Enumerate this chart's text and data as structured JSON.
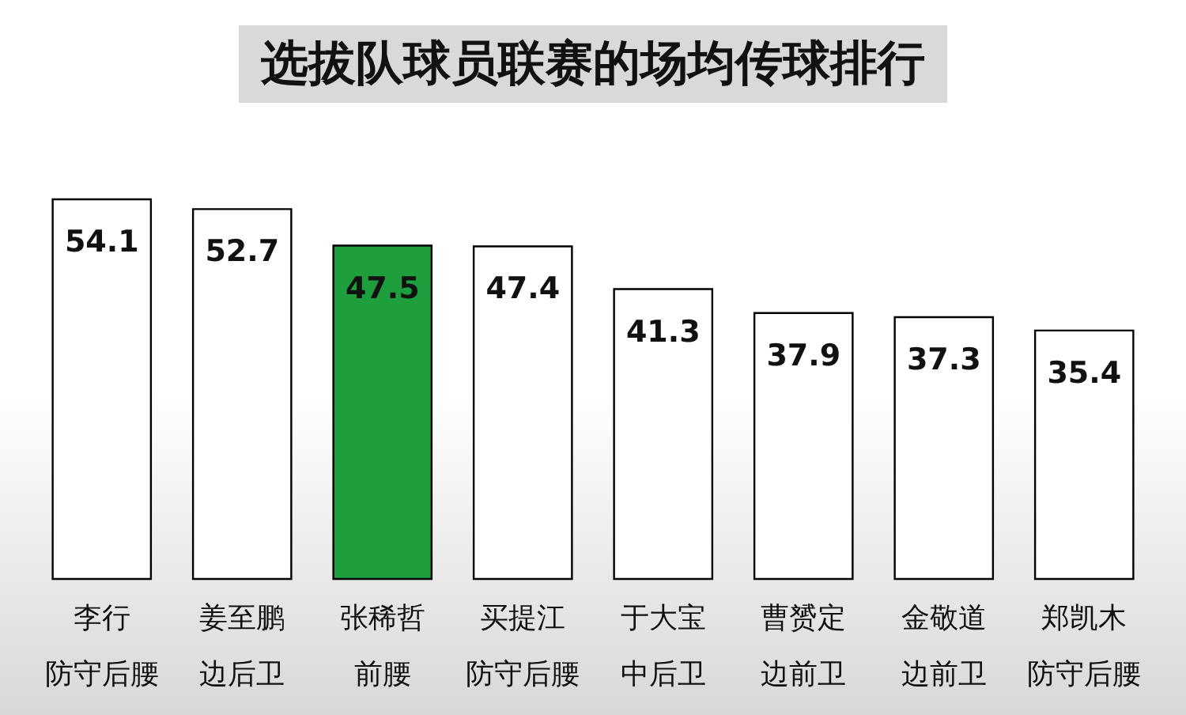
{
  "chart_data": {
    "type": "bar",
    "title": "选拔队球员联赛的场均传球排行",
    "categories": [
      "李行",
      "姜至鹏",
      "张稀哲",
      "买提江",
      "于大宝",
      "曹赟定",
      "金敬道",
      "郑凯木"
    ],
    "values": [
      54.1,
      52.7,
      47.5,
      47.4,
      41.3,
      37.9,
      37.3,
      35.4
    ],
    "colors": [
      "#ffffff",
      "#ffffff",
      "#1e9e3c",
      "#ffffff",
      "#ffffff",
      "#ffffff",
      "#ffffff",
      "#ffffff"
    ],
    "annotations": [
      "防守后腰",
      "边后卫",
      "前腰",
      "防守后腰",
      "中后卫",
      "边前卫",
      "边前卫",
      "防守后腰"
    ],
    "data_labels": true
  }
}
